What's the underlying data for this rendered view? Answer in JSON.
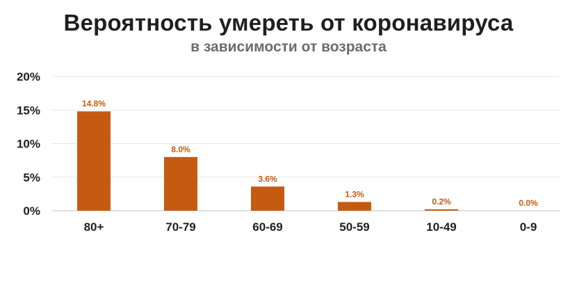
{
  "chart_data": {
    "type": "bar",
    "title": "Вероятность умереть от коронавируса",
    "subtitle": "в зависимости от возраста",
    "categories": [
      "80+",
      "70-79",
      "60-69",
      "50-59",
      "10-49",
      "0-9"
    ],
    "values": [
      14.8,
      8.0,
      3.6,
      1.3,
      0.2,
      0.0
    ],
    "data_labels": [
      "14.8%",
      "8.0%",
      "3.6%",
      "1.3%",
      "0.2%",
      "0.0%"
    ],
    "yticks": [
      0,
      5,
      10,
      15,
      20
    ],
    "ytick_labels": [
      "0%",
      "5%",
      "10%",
      "15%",
      "20%"
    ],
    "ylim": [
      0,
      20
    ],
    "grid": true,
    "legend": "none",
    "xlabel": "",
    "ylabel": ""
  },
  "colors": {
    "bar": "#c55a11",
    "label": "#c55a11",
    "grid": "#e6e6e6",
    "axis": "#bfbfbf"
  }
}
